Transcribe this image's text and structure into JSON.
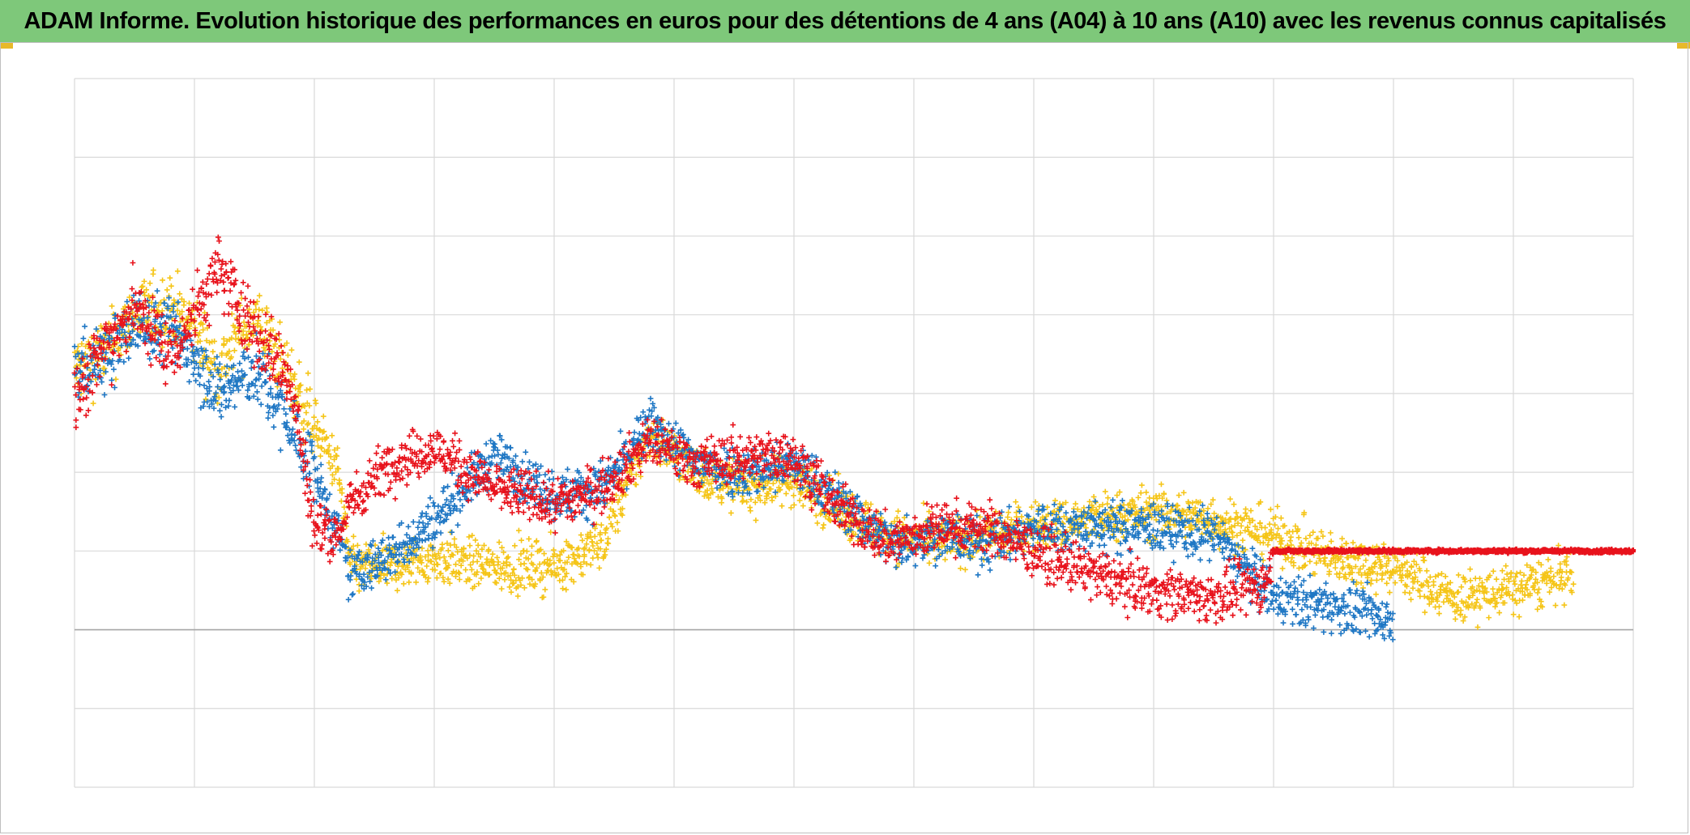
{
  "title": "ADAM Informe. Evolution historique des performances en euros pour des détentions de 4 ans (A04) à 10 ans (A10) avec les revenus connus capitalisés",
  "colors": {
    "title_background": "#7ec87a",
    "gridline": "#d9d9d9",
    "zero_line": "#a6a6a6",
    "corner_accent": "#e8b92a"
  },
  "chart_data": {
    "type": "scatter",
    "marker": "plus",
    "title": "ADAM Informe. Evolution historique des performances en euros pour des détentions de 4 ans (A04) à 10 ans (A10) avec les revenus connus capitalisés",
    "xlabel": "",
    "ylabel": "",
    "x_tick_labels_shown": false,
    "y_tick_labels_shown": false,
    "grid": true,
    "legend": "none",
    "xlim": [
      0,
      13
    ],
    "ylim": [
      -2,
      7
    ],
    "y_zero": 0,
    "series": [
      {
        "color": "#f5c518",
        "x_end": 12.5,
        "points": [
          [
            0,
            3.3
          ],
          [
            0.3,
            3.6
          ],
          [
            0.5,
            4.0
          ],
          [
            0.8,
            4.1
          ],
          [
            1.0,
            3.8
          ],
          [
            1.2,
            3.3
          ],
          [
            1.5,
            4.0
          ],
          [
            1.8,
            3.2
          ],
          [
            2.0,
            2.6
          ],
          [
            2.2,
            2.0
          ],
          [
            2.3,
            0.8
          ],
          [
            2.6,
            0.8
          ],
          [
            3.0,
            0.9
          ],
          [
            3.5,
            0.8
          ],
          [
            4.0,
            0.8
          ],
          [
            4.4,
            1.1
          ],
          [
            4.8,
            2.5
          ],
          [
            5.2,
            2.0
          ],
          [
            5.6,
            1.8
          ],
          [
            6.0,
            1.9
          ],
          [
            6.4,
            1.5
          ],
          [
            6.8,
            1.2
          ],
          [
            7.2,
            1.1
          ],
          [
            7.6,
            1.2
          ],
          [
            8.0,
            1.3
          ],
          [
            8.5,
            1.4
          ],
          [
            9.0,
            1.5
          ],
          [
            9.5,
            1.4
          ],
          [
            10.0,
            1.2
          ],
          [
            10.5,
            0.9
          ],
          [
            11.0,
            0.8
          ],
          [
            11.5,
            0.4
          ],
          [
            12.0,
            0.5
          ],
          [
            12.5,
            0.7
          ]
        ]
      },
      {
        "color": "#1f77c4",
        "x_end": 11.0,
        "points": [
          [
            0,
            3.3
          ],
          [
            0.3,
            3.5
          ],
          [
            0.5,
            3.9
          ],
          [
            0.8,
            3.8
          ],
          [
            1.0,
            3.5
          ],
          [
            1.2,
            3.0
          ],
          [
            1.5,
            3.3
          ],
          [
            1.8,
            2.6
          ],
          [
            2.0,
            2.0
          ],
          [
            2.2,
            1.2
          ],
          [
            2.3,
            0.7
          ],
          [
            2.6,
            0.9
          ],
          [
            3.0,
            1.4
          ],
          [
            3.5,
            2.2
          ],
          [
            4.0,
            1.7
          ],
          [
            4.4,
            1.8
          ],
          [
            4.8,
            2.6
          ],
          [
            5.2,
            2.1
          ],
          [
            5.6,
            2.0
          ],
          [
            6.0,
            2.1
          ],
          [
            6.4,
            1.6
          ],
          [
            6.8,
            1.1
          ],
          [
            7.2,
            1.2
          ],
          [
            7.6,
            1.1
          ],
          [
            8.0,
            1.3
          ],
          [
            8.5,
            1.3
          ],
          [
            9.0,
            1.3
          ],
          [
            9.5,
            1.2
          ],
          [
            10.0,
            0.4
          ],
          [
            10.5,
            0.3
          ],
          [
            11.0,
            0.1
          ]
        ]
      },
      {
        "color": "#e8131c",
        "x_end": 13.0,
        "points": [
          [
            0,
            3.0
          ],
          [
            0.3,
            3.7
          ],
          [
            0.5,
            4.1
          ],
          [
            0.8,
            3.5
          ],
          [
            1.0,
            4.0
          ],
          [
            1.2,
            4.6
          ],
          [
            1.5,
            3.8
          ],
          [
            1.8,
            3.2
          ],
          [
            2.0,
            1.3
          ],
          [
            2.2,
            1.2
          ],
          [
            2.3,
            1.6
          ],
          [
            2.6,
            2.1
          ],
          [
            3.0,
            2.3
          ],
          [
            3.5,
            1.8
          ],
          [
            4.0,
            1.6
          ],
          [
            4.4,
            1.8
          ],
          [
            4.8,
            2.4
          ],
          [
            5.2,
            2.1
          ],
          [
            5.6,
            2.2
          ],
          [
            6.0,
            2.2
          ],
          [
            6.4,
            1.5
          ],
          [
            6.8,
            1.1
          ],
          [
            7.2,
            1.3
          ],
          [
            7.6,
            1.3
          ],
          [
            8.0,
            1.0
          ],
          [
            8.5,
            0.7
          ],
          [
            9.0,
            0.5
          ],
          [
            9.5,
            0.4
          ],
          [
            9.95,
            0.6
          ],
          [
            10.0,
            1.0
          ],
          [
            13.0,
            1.0
          ]
        ]
      }
    ]
  }
}
